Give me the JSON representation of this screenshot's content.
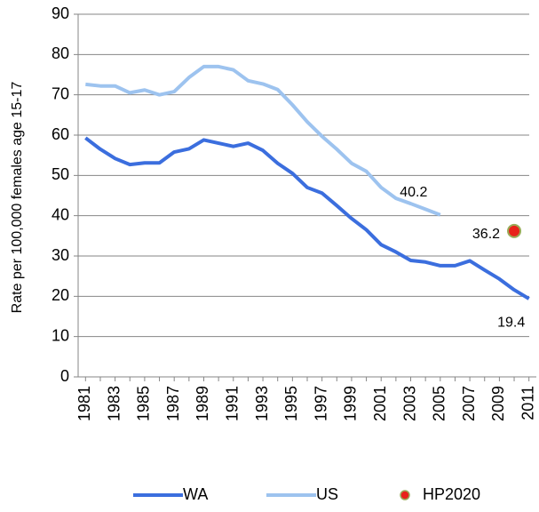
{
  "chart_data": {
    "type": "line",
    "y_label": "Rate per 100,000 females age 15-17",
    "categories": [
      "1981",
      null,
      "1983",
      null,
      "1985",
      null,
      "1987",
      null,
      "1989",
      null,
      "1991",
      null,
      "1993",
      null,
      "1995",
      null,
      "1997",
      null,
      "1999",
      null,
      "2001",
      null,
      "2003",
      null,
      "2005",
      null,
      "2007",
      null,
      "2009",
      null,
      "2011"
    ],
    "series": [
      {
        "name": "WA",
        "color": "#3b6ede",
        "style": "line",
        "values": [
          59.3,
          56.5,
          54.2,
          52.7,
          53.1,
          53.1,
          55.8,
          56.6,
          58.8,
          58,
          57.2,
          58,
          56.2,
          53,
          50.5,
          47,
          45.6,
          42.5,
          39.3,
          36.5,
          32.8,
          31,
          28.9,
          28.5,
          27.6,
          27.6,
          28.8,
          26.5,
          24.3,
          21.6,
          19.4
        ]
      },
      {
        "name": "US",
        "color": "#9dc3ef",
        "style": "line",
        "values": [
          72.6,
          72.2,
          72.2,
          70.5,
          71.2,
          70,
          70.8,
          74.3,
          77,
          77,
          76.2,
          73.5,
          72.7,
          71.3,
          67.5,
          63.3,
          59.7,
          56.5,
          53,
          51,
          47,
          44.3,
          43,
          41.6,
          40.2,
          null,
          null,
          null,
          null,
          null,
          null
        ]
      },
      {
        "name": "HP2020",
        "color": "#e8221a",
        "style": "marker",
        "values": [
          null,
          null,
          null,
          null,
          null,
          null,
          null,
          null,
          null,
          null,
          null,
          null,
          null,
          null,
          null,
          null,
          null,
          null,
          null,
          null,
          null,
          null,
          null,
          null,
          null,
          null,
          null,
          null,
          null,
          36.2,
          null
        ]
      }
    ],
    "ylim": [
      0,
      90
    ],
    "yticks": [
      0,
      10,
      20,
      30,
      40,
      50,
      60,
      70,
      80,
      90
    ],
    "grid": true,
    "legend": "bottom"
  }
}
